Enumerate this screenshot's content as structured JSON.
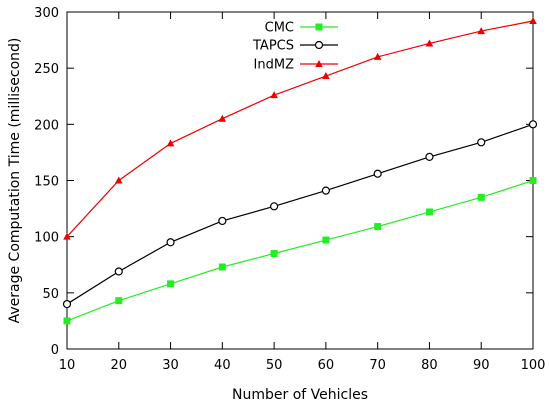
{
  "chart_data": {
    "type": "line",
    "title": "",
    "xlabel": "Number of Vehicles",
    "ylabel": "Average Computation Time (millisecond)",
    "x": [
      10,
      20,
      30,
      40,
      50,
      60,
      70,
      80,
      90,
      100
    ],
    "xlim": [
      10,
      100
    ],
    "ylim": [
      0,
      300
    ],
    "xticks": [
      10,
      20,
      30,
      40,
      50,
      60,
      70,
      80,
      90,
      100
    ],
    "yticks": [
      0,
      50,
      100,
      150,
      200,
      250,
      300
    ],
    "grid": false,
    "legend_position": "top-left",
    "series": [
      {
        "name": "CMC",
        "color": "#22ee22",
        "marker": "filled-square",
        "values": [
          25,
          43,
          58,
          73,
          85,
          97,
          109,
          122,
          135,
          150
        ]
      },
      {
        "name": "TAPCS",
        "color": "#000000",
        "marker": "open-circle",
        "values": [
          40,
          69,
          95,
          114,
          127,
          141,
          156,
          171,
          184,
          200
        ]
      },
      {
        "name": "IndMZ",
        "color": "#ee0000",
        "marker": "filled-triangle",
        "values": [
          100,
          150,
          183,
          205,
          226,
          243,
          260,
          272,
          283,
          292
        ]
      }
    ]
  }
}
